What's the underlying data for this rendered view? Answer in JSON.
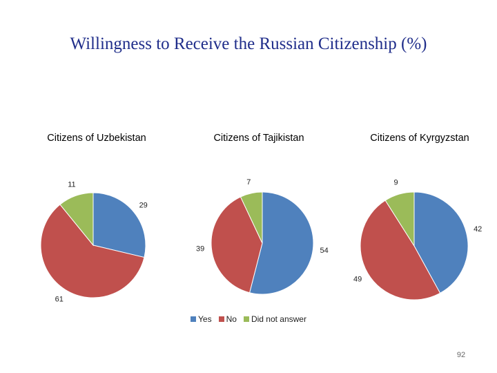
{
  "title": "Willingness to Receive the Russian Citizenship (%)",
  "page_number": "92",
  "colors": {
    "Yes": "#4f81bd",
    "No": "#c0504d",
    "Did not answer": "#9bbb59"
  },
  "chart_data": [
    {
      "type": "pie",
      "title": "Citizens of Uzbekistan",
      "categories": [
        "Yes",
        "No",
        "Did not answer"
      ],
      "values": [
        29,
        61,
        11
      ],
      "legend": "bottom"
    },
    {
      "type": "pie",
      "title": "Citizens of Tajikistan",
      "categories": [
        "Yes",
        "No",
        "Did not answer"
      ],
      "values": [
        54,
        39,
        7
      ],
      "legend": "bottom"
    },
    {
      "type": "pie",
      "title": "Citizens of Kyrgyzstan",
      "categories": [
        "Yes",
        "No",
        "Did not answer"
      ],
      "values": [
        42,
        49,
        9
      ],
      "legend": "bottom"
    }
  ],
  "legend": [
    "Yes",
    "No",
    "Did not answer"
  ]
}
